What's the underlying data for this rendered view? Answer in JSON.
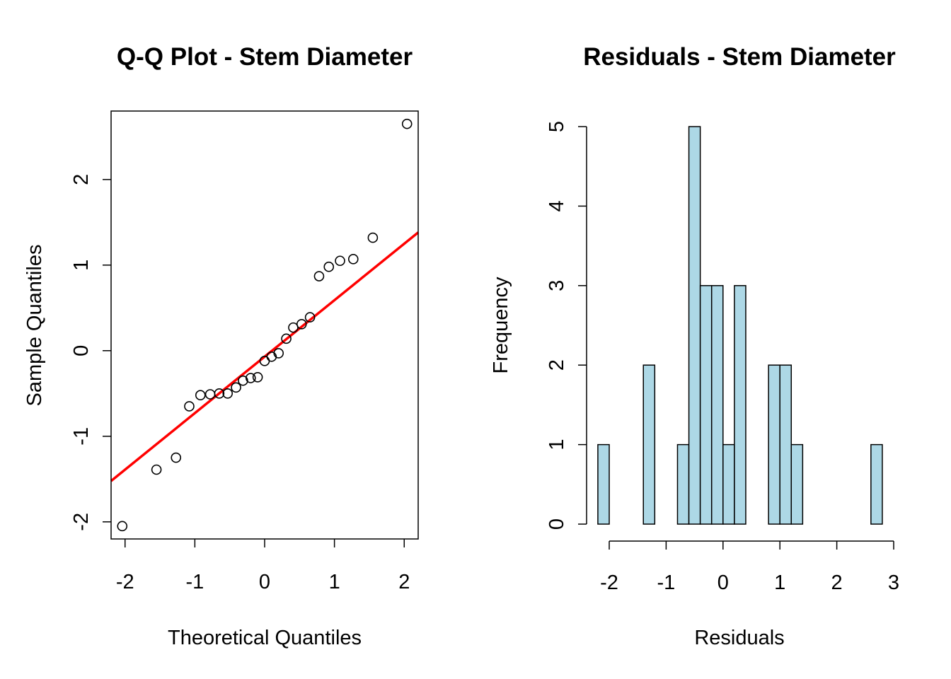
{
  "chart_data": [
    {
      "type": "scatter",
      "title": "Q-Q Plot - Stem Diameter",
      "xlabel": "Theoretical Quantiles",
      "ylabel": "Sample Quantiles",
      "xlim": [
        -2.2,
        2.2
      ],
      "ylim": [
        -2.2,
        2.8
      ],
      "xticks": [
        -2,
        -1,
        0,
        1,
        2
      ],
      "yticks": [
        -2,
        -1,
        0,
        1,
        2
      ],
      "xtick_labels": [
        "-2",
        "-1",
        "0",
        "1",
        "2"
      ],
      "ytick_labels": [
        "-2",
        "-1",
        "0",
        "1",
        "2"
      ],
      "points": [
        {
          "x": -2.04,
          "y": -2.05
        },
        {
          "x": -1.55,
          "y": -1.39
        },
        {
          "x": -1.27,
          "y": -1.25
        },
        {
          "x": -1.08,
          "y": -0.65
        },
        {
          "x": -0.92,
          "y": -0.52
        },
        {
          "x": -0.78,
          "y": -0.51
        },
        {
          "x": -0.65,
          "y": -0.5
        },
        {
          "x": -0.53,
          "y": -0.5
        },
        {
          "x": -0.41,
          "y": -0.43
        },
        {
          "x": -0.31,
          "y": -0.35
        },
        {
          "x": -0.2,
          "y": -0.32
        },
        {
          "x": -0.1,
          "y": -0.31
        },
        {
          "x": 0.0,
          "y": -0.12
        },
        {
          "x": 0.1,
          "y": -0.07
        },
        {
          "x": 0.2,
          "y": -0.03
        },
        {
          "x": 0.31,
          "y": 0.14
        },
        {
          "x": 0.41,
          "y": 0.27
        },
        {
          "x": 0.53,
          "y": 0.31
        },
        {
          "x": 0.65,
          "y": 0.39
        },
        {
          "x": 0.78,
          "y": 0.87
        },
        {
          "x": 0.92,
          "y": 0.98
        },
        {
          "x": 1.08,
          "y": 1.05
        },
        {
          "x": 1.27,
          "y": 1.07
        },
        {
          "x": 1.55,
          "y": 1.32
        },
        {
          "x": 2.04,
          "y": 2.65
        }
      ],
      "reference_line": {
        "intercept": -0.07,
        "slope": 0.66,
        "color": "#ff0000"
      },
      "point_style": "open-circle"
    },
    {
      "type": "bar",
      "subtype": "histogram",
      "title": "Residuals - Stem Diameter",
      "xlabel": "Residuals",
      "ylabel": "Frequency",
      "bar_color": "#add8e6",
      "bin_width": 0.2,
      "bins": [
        {
          "from": -2.2,
          "to": -2.0,
          "count": 1
        },
        {
          "from": -2.0,
          "to": -1.8,
          "count": 0
        },
        {
          "from": -1.8,
          "to": -1.6,
          "count": 0
        },
        {
          "from": -1.6,
          "to": -1.4,
          "count": 0
        },
        {
          "from": -1.4,
          "to": -1.2,
          "count": 2
        },
        {
          "from": -1.2,
          "to": -1.0,
          "count": 0
        },
        {
          "from": -1.0,
          "to": -0.8,
          "count": 0
        },
        {
          "from": -0.8,
          "to": -0.6,
          "count": 1
        },
        {
          "from": -0.6,
          "to": -0.4,
          "count": 5
        },
        {
          "from": -0.4,
          "to": -0.2,
          "count": 3
        },
        {
          "from": -0.2,
          "to": 0.0,
          "count": 3
        },
        {
          "from": 0.0,
          "to": 0.2,
          "count": 1
        },
        {
          "from": 0.2,
          "to": 0.4,
          "count": 3
        },
        {
          "from": 0.4,
          "to": 0.6,
          "count": 0
        },
        {
          "from": 0.6,
          "to": 0.8,
          "count": 0
        },
        {
          "from": 0.8,
          "to": 1.0,
          "count": 2
        },
        {
          "from": 1.0,
          "to": 1.2,
          "count": 2
        },
        {
          "from": 1.2,
          "to": 1.4,
          "count": 1
        },
        {
          "from": 1.4,
          "to": 1.6,
          "count": 0
        },
        {
          "from": 1.6,
          "to": 1.8,
          "count": 0
        },
        {
          "from": 1.8,
          "to": 2.0,
          "count": 0
        },
        {
          "from": 2.0,
          "to": 2.2,
          "count": 0
        },
        {
          "from": 2.2,
          "to": 2.4,
          "count": 0
        },
        {
          "from": 2.4,
          "to": 2.6,
          "count": 0
        },
        {
          "from": 2.6,
          "to": 2.8,
          "count": 1
        }
      ],
      "xlim": [
        -2.2,
        2.8
      ],
      "ylim": [
        0,
        5
      ],
      "xticks": [
        -2,
        -1,
        0,
        1,
        2,
        3
      ],
      "yticks": [
        0,
        1,
        2,
        3,
        4,
        5
      ],
      "xtick_labels": [
        "-2",
        "-1",
        "0",
        "1",
        "2",
        "3"
      ],
      "ytick_labels": [
        "0",
        "1",
        "2",
        "3",
        "4",
        "5"
      ]
    }
  ]
}
